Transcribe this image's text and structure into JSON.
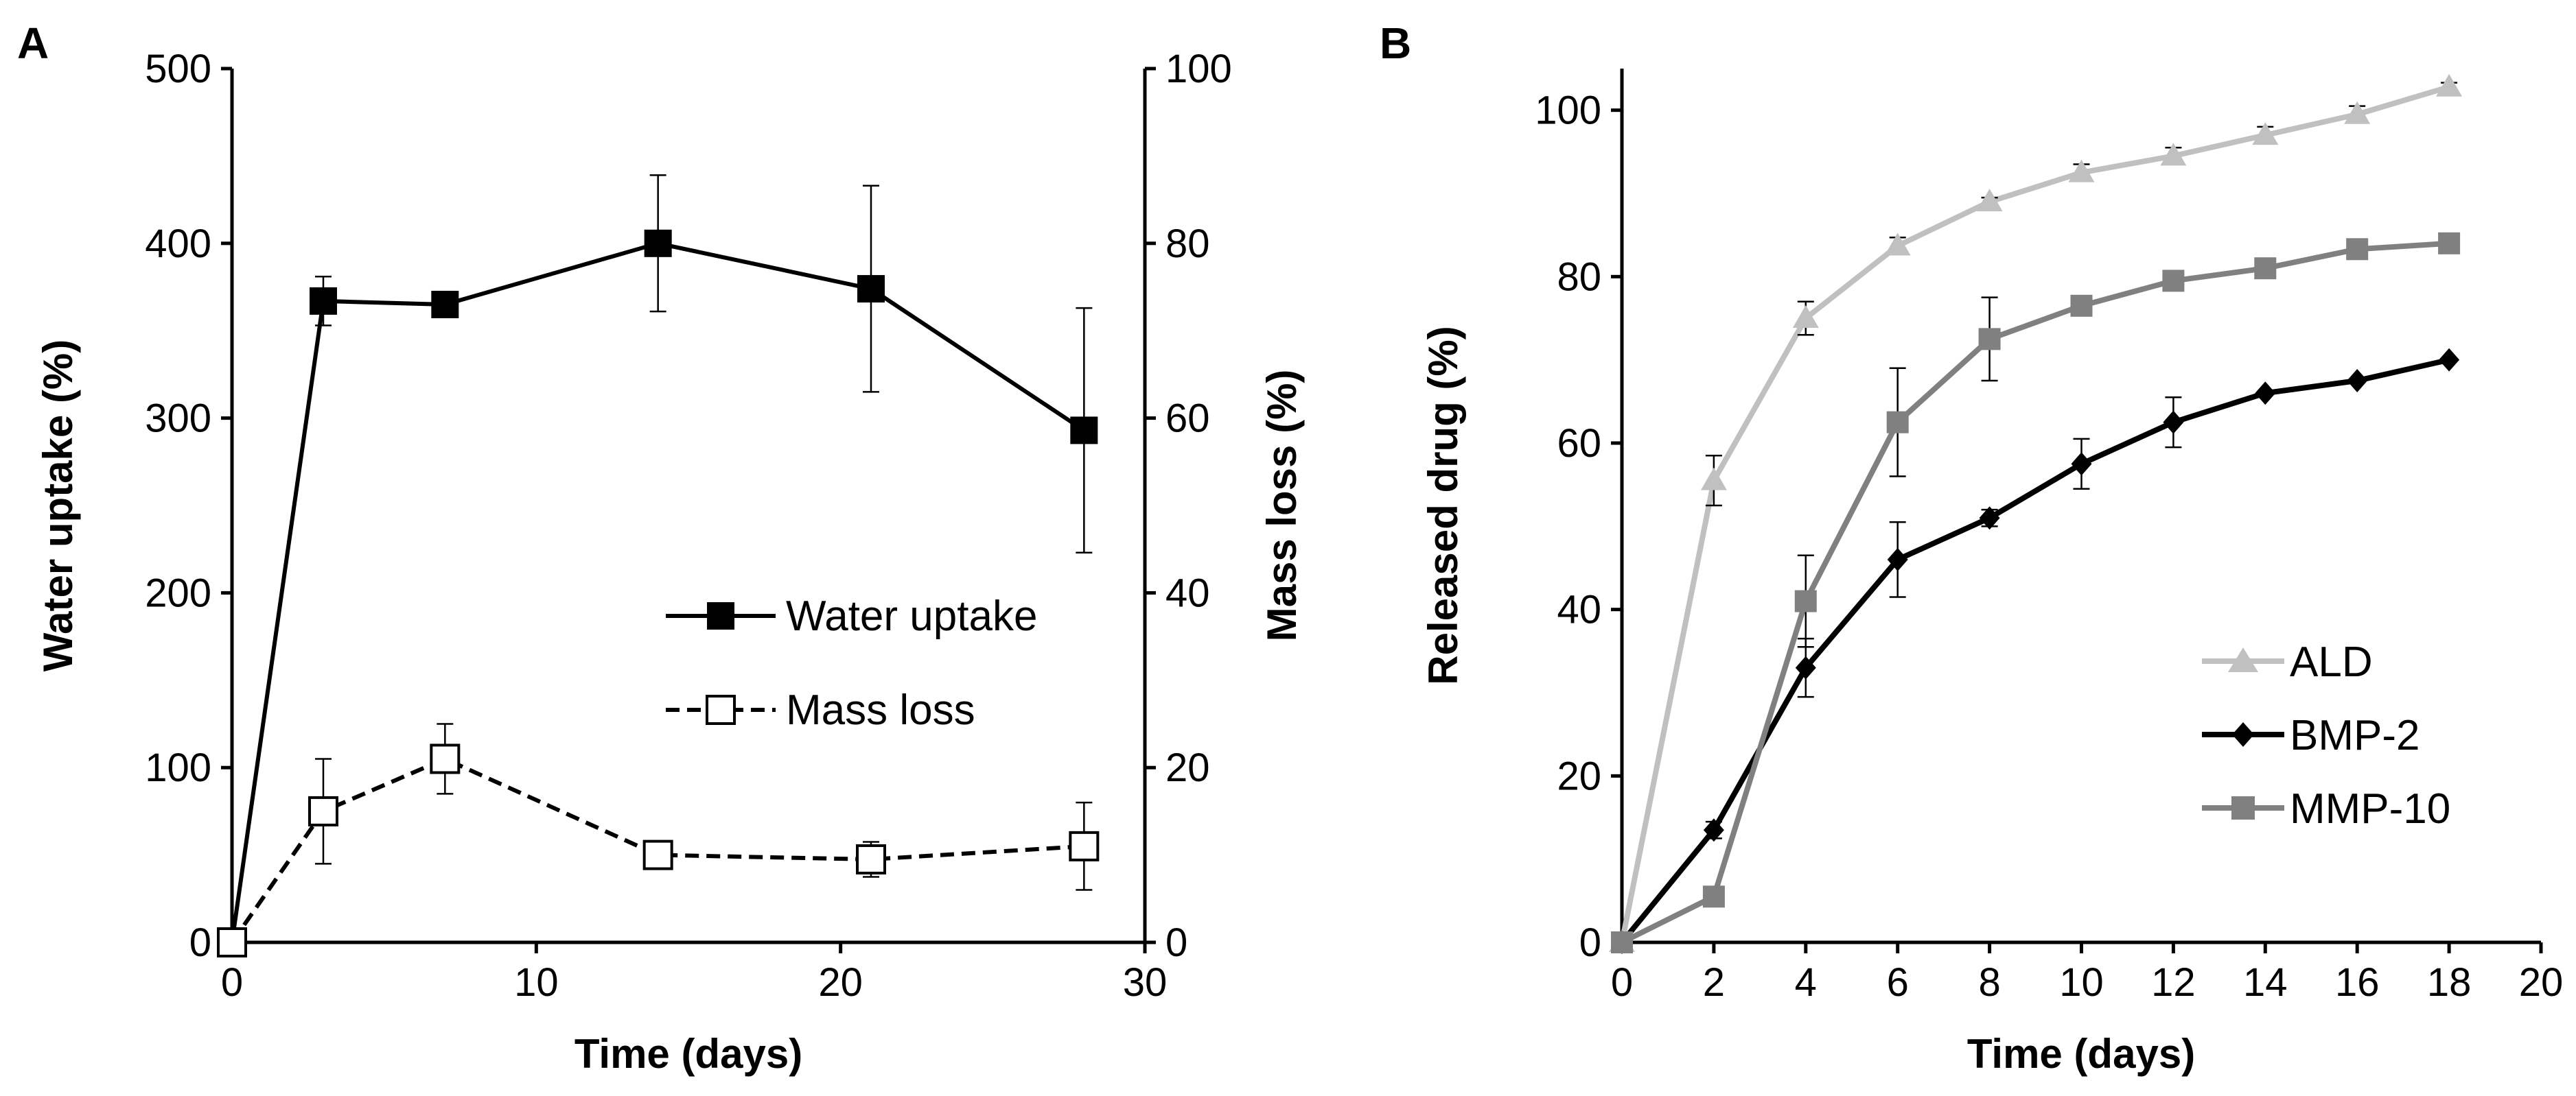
{
  "chart_data": [
    {
      "panel": "A",
      "type": "line",
      "xlabel": "Time (days)",
      "ylabel": "Water uptake (%)",
      "y2label": "Mass loss (%)",
      "xlim": [
        0,
        30
      ],
      "ylim": [
        0,
        500
      ],
      "y2lim": [
        0,
        100
      ],
      "xticks": [
        0,
        10,
        20,
        30
      ],
      "yticks": [
        0,
        100,
        200,
        300,
        400,
        500
      ],
      "y2ticks": [
        0,
        20,
        40,
        60,
        80,
        100
      ],
      "legend_position": "center-right",
      "series": [
        {
          "name": "Water uptake",
          "axis": "left",
          "color": "#000000",
          "style": "solid",
          "marker": "filled-square",
          "x": [
            0,
            3,
            7,
            14,
            21,
            28
          ],
          "values": [
            0,
            367,
            365,
            400,
            374,
            293
          ],
          "err": [
            0,
            14,
            0,
            39,
            59,
            70
          ]
        },
        {
          "name": "Mass loss",
          "axis": "right",
          "color": "#000000",
          "style": "dashed",
          "marker": "open-square",
          "x": [
            0,
            3,
            7,
            14,
            21,
            28
          ],
          "values": [
            0,
            15,
            21,
            10,
            9.5,
            11
          ],
          "err": [
            0,
            6,
            4,
            1.5,
            2,
            5
          ]
        }
      ]
    },
    {
      "panel": "B",
      "type": "line",
      "xlabel": "Time (days)",
      "ylabel": "Released drug (%)",
      "xlim": [
        0,
        20
      ],
      "ylim": [
        0,
        105
      ],
      "xticks": [
        0,
        2,
        4,
        6,
        8,
        10,
        12,
        14,
        16,
        18,
        20
      ],
      "yticks": [
        0,
        20,
        40,
        60,
        80,
        100
      ],
      "legend_position": "bottom-right",
      "series": [
        {
          "name": "ALD",
          "color": "#c0c0c0",
          "marker": "triangle",
          "x": [
            0,
            2,
            4,
            6,
            8,
            10,
            12,
            14,
            16,
            18
          ],
          "values": [
            0,
            55.5,
            75,
            83.7,
            89,
            92.5,
            94.5,
            97,
            99.5,
            102.8
          ],
          "err": [
            0,
            3,
            2,
            1,
            0.5,
            1,
            1,
            1,
            1,
            0.5
          ]
        },
        {
          "name": "BMP-2",
          "color": "#000000",
          "marker": "diamond",
          "x": [
            0,
            2,
            4,
            6,
            8,
            10,
            12,
            14,
            16,
            18
          ],
          "values": [
            0,
            13.5,
            33,
            46,
            51,
            57.5,
            62.5,
            66,
            67.5,
            70
          ],
          "err": [
            0,
            1,
            3.5,
            4.5,
            1,
            3,
            3,
            0,
            0,
            0
          ]
        },
        {
          "name": "MMP-10",
          "color": "#808080",
          "marker": "square",
          "x": [
            0,
            2,
            4,
            6,
            8,
            10,
            12,
            14,
            16,
            18
          ],
          "values": [
            0,
            5.5,
            41,
            62.5,
            72.5,
            76.5,
            79.5,
            81,
            83.3,
            84
          ],
          "err": [
            0,
            0,
            5.5,
            6.5,
            5,
            0,
            0,
            0,
            0,
            0
          ]
        }
      ]
    }
  ]
}
